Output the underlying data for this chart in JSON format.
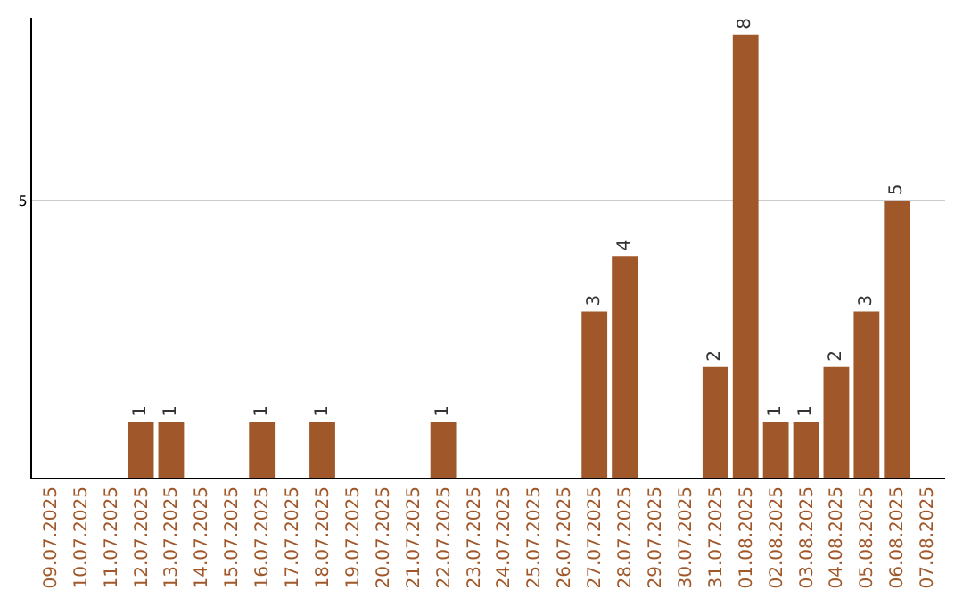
{
  "chart_data": {
    "type": "bar",
    "categories": [
      "09.07.2025",
      "10.07.2025",
      "11.07.2025",
      "12.07.2025",
      "13.07.2025",
      "14.07.2025",
      "15.07.2025",
      "16.07.2025",
      "17.07.2025",
      "18.07.2025",
      "19.07.2025",
      "20.07.2025",
      "21.07.2025",
      "22.07.2025",
      "23.07.2025",
      "24.07.2025",
      "25.07.2025",
      "26.07.2025",
      "27.07.2025",
      "28.07.2025",
      "29.07.2025",
      "30.07.2025",
      "31.07.2025",
      "01.08.2025",
      "02.08.2025",
      "03.08.2025",
      "04.08.2025",
      "05.08.2025",
      "06.08.2025",
      "07.08.2025"
    ],
    "values": [
      0,
      0,
      0,
      1,
      1,
      0,
      0,
      1,
      0,
      1,
      0,
      0,
      0,
      1,
      0,
      0,
      0,
      0,
      3,
      4,
      0,
      0,
      2,
      8,
      1,
      1,
      2,
      3,
      5,
      0
    ],
    "value_labels": [
      null,
      null,
      null,
      "1",
      "1",
      null,
      null,
      "1",
      null,
      "1",
      null,
      null,
      null,
      "1",
      null,
      null,
      null,
      null,
      "3",
      "4",
      null,
      null,
      "2",
      "8",
      "1",
      "1",
      "2",
      "3",
      "5",
      null
    ],
    "color": "#a0582a",
    "ylim": [
      0,
      8.3
    ],
    "yticks": [
      5
    ],
    "grid": "y",
    "legend": false
  }
}
